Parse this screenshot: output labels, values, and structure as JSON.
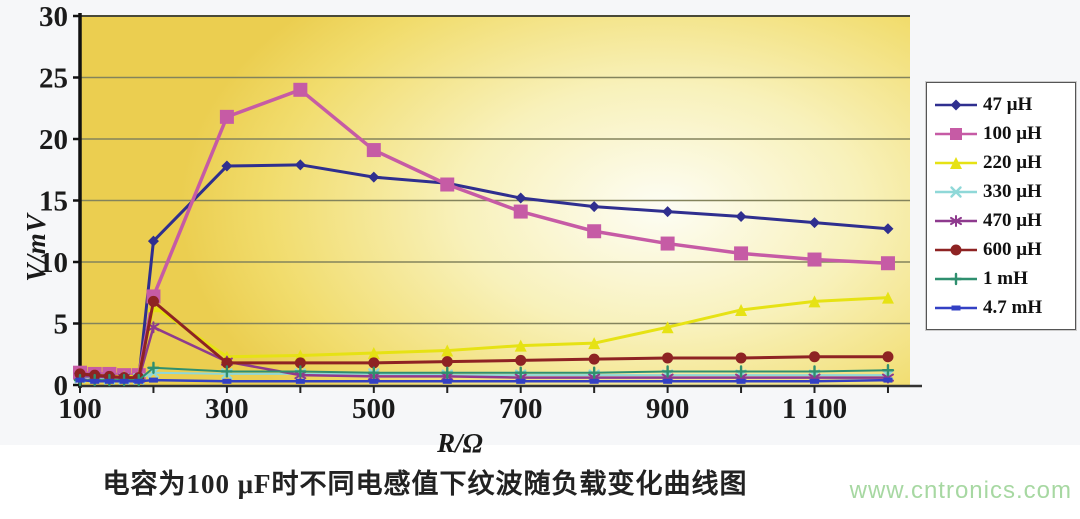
{
  "figure": {
    "caption": "电容为100 μF时不同电感值下纹波随负载变化曲线图",
    "watermark": "www.cntronics.com"
  },
  "chart_data": {
    "type": "line",
    "title": "电容为100 μF时不同电感值下纹波随负载变化曲线图",
    "xlabel": "R/Ω",
    "ylabel": "V/mV",
    "xlim": [
      100,
      1230
    ],
    "ylim": [
      0,
      30
    ],
    "x_ticks": [
      100,
      300,
      500,
      700,
      900,
      1100
    ],
    "x_tick_labels": [
      "100",
      "300",
      "500",
      "700",
      "900",
      "1 100"
    ],
    "x_minor_ticks": [
      100,
      200,
      300,
      400,
      500,
      600,
      700,
      800,
      900,
      1000,
      1100,
      1200
    ],
    "y_ticks": [
      0,
      5,
      10,
      15,
      20,
      25,
      30
    ],
    "grid": "horizontal-every-5",
    "legend_position": "right",
    "plot_bg": "yellow-gradient",
    "grid_color": "#83835c",
    "x": [
      100,
      120,
      140,
      160,
      180,
      200,
      300,
      400,
      500,
      600,
      700,
      800,
      900,
      1000,
      1100,
      1200
    ],
    "series": [
      {
        "name": "47 μH",
        "color": "#2f2f8f",
        "marker": "diamond",
        "size": 5.5,
        "width": 3,
        "values": [
          0.8,
          0.7,
          0.6,
          0.5,
          0.5,
          11.7,
          17.8,
          17.9,
          16.9,
          16.4,
          15.2,
          14.5,
          14.1,
          13.7,
          13.2,
          12.7
        ]
      },
      {
        "name": "100 μH",
        "color": "#c65ba5",
        "marker": "square",
        "size": 7,
        "width": 3.5,
        "values": [
          1.0,
          0.9,
          0.9,
          0.8,
          0.8,
          7.2,
          21.8,
          24.0,
          19.1,
          16.3,
          14.1,
          12.5,
          11.5,
          10.7,
          10.2,
          9.9
        ]
      },
      {
        "name": "220 μH",
        "color": "#e6e214",
        "marker": "triangle",
        "size": 6,
        "width": 3,
        "values": [
          0.8,
          0.8,
          0.7,
          0.7,
          0.7,
          6.4,
          2.3,
          2.4,
          2.6,
          2.8,
          3.2,
          3.4,
          4.7,
          6.1,
          6.8,
          7.1
        ]
      },
      {
        "name": "330 μH",
        "color": "#8fd8d8",
        "marker": "x",
        "size": 4.5,
        "width": 2,
        "values": [
          0.6,
          0.6,
          0.5,
          0.5,
          0.5,
          1.0,
          0.9,
          0.9,
          0.9,
          0.8,
          0.8,
          0.8,
          0.8,
          0.8,
          0.8,
          0.8
        ]
      },
      {
        "name": "470 μH",
        "color": "#8e3a8e",
        "marker": "asterisk",
        "size": 5,
        "width": 2.5,
        "values": [
          0.7,
          0.7,
          0.6,
          0.6,
          0.5,
          4.7,
          1.9,
          0.8,
          0.7,
          0.7,
          0.6,
          0.6,
          0.6,
          0.6,
          0.6,
          0.6
        ]
      },
      {
        "name": "600 μH",
        "color": "#8e2323",
        "marker": "circle",
        "size": 5.5,
        "width": 3,
        "values": [
          0.9,
          0.8,
          0.7,
          0.6,
          0.6,
          6.8,
          1.8,
          1.8,
          1.8,
          1.9,
          2.0,
          2.1,
          2.2,
          2.2,
          2.3,
          2.3
        ]
      },
      {
        "name": "1 mH",
        "color": "#2f8f6f",
        "marker": "plus",
        "size": 5,
        "width": 2,
        "values": [
          0.4,
          0.4,
          0.4,
          0.4,
          0.4,
          1.4,
          1.1,
          1.1,
          1.0,
          1.0,
          1.0,
          1.0,
          1.1,
          1.1,
          1.1,
          1.2
        ]
      },
      {
        "name": "4.7 mH",
        "color": "#3340c4",
        "marker": "dash",
        "size": 4.5,
        "width": 2.5,
        "values": [
          0.4,
          0.3,
          0.3,
          0.3,
          0.3,
          0.4,
          0.3,
          0.3,
          0.3,
          0.3,
          0.3,
          0.3,
          0.3,
          0.3,
          0.3,
          0.4
        ]
      }
    ]
  }
}
